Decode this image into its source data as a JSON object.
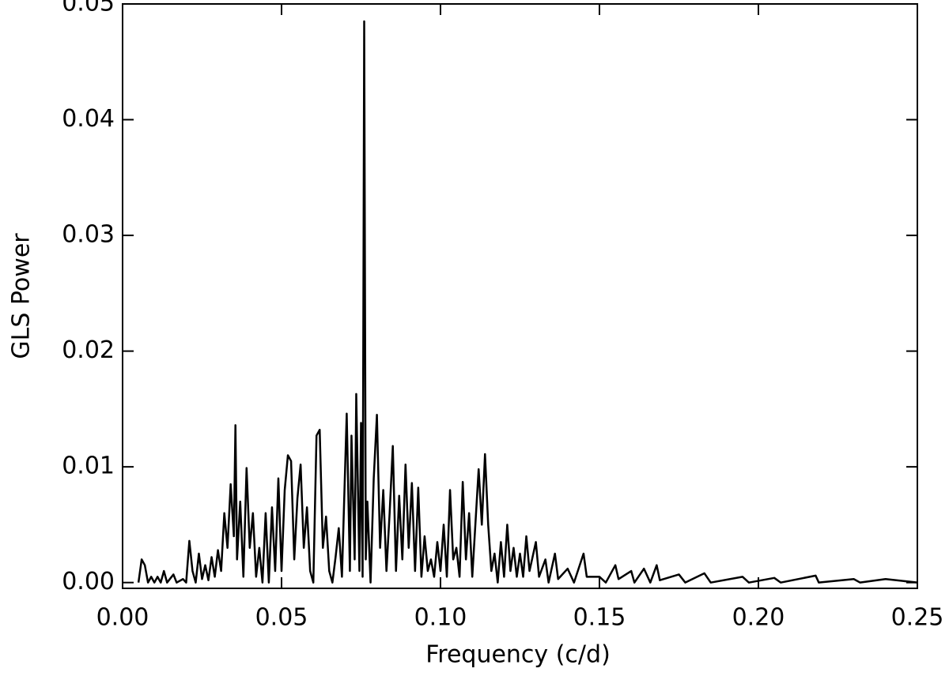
{
  "chart_data": {
    "type": "line",
    "xlabel": "Frequency (c/d)",
    "ylabel": "GLS Power",
    "color": "#000000",
    "grid": false,
    "x": [
      0.005,
      0.006,
      0.007,
      0.008,
      0.009,
      0.01,
      0.011,
      0.012,
      0.013,
      0.014,
      0.016,
      0.017,
      0.019,
      0.02,
      0.021,
      0.022,
      0.023,
      0.024,
      0.025,
      0.026,
      0.027,
      0.028,
      0.029,
      0.03,
      0.031,
      0.032,
      0.033,
      0.034,
      0.035,
      0.0355,
      0.036,
      0.037,
      0.038,
      0.039,
      0.04,
      0.041,
      0.042,
      0.043,
      0.044,
      0.045,
      0.046,
      0.047,
      0.048,
      0.049,
      0.05,
      0.051,
      0.052,
      0.053,
      0.054,
      0.055,
      0.056,
      0.057,
      0.058,
      0.059,
      0.06,
      0.061,
      0.062,
      0.063,
      0.064,
      0.065,
      0.066,
      0.067,
      0.068,
      0.069,
      0.0705,
      0.0715,
      0.072,
      0.073,
      0.0735,
      0.0745,
      0.075,
      0.0755,
      0.076,
      0.0765,
      0.077,
      0.078,
      0.079,
      0.08,
      0.081,
      0.082,
      0.083,
      0.084,
      0.085,
      0.086,
      0.087,
      0.088,
      0.089,
      0.09,
      0.091,
      0.092,
      0.093,
      0.094,
      0.095,
      0.096,
      0.097,
      0.098,
      0.099,
      0.1,
      0.101,
      0.102,
      0.103,
      0.104,
      0.105,
      0.106,
      0.107,
      0.108,
      0.109,
      0.11,
      0.112,
      0.113,
      0.114,
      0.115,
      0.116,
      0.117,
      0.118,
      0.119,
      0.12,
      0.121,
      0.122,
      0.123,
      0.124,
      0.125,
      0.126,
      0.127,
      0.128,
      0.13,
      0.131,
      0.133,
      0.134,
      0.136,
      0.137,
      0.14,
      0.142,
      0.145,
      0.146,
      0.15,
      0.152,
      0.155,
      0.156,
      0.16,
      0.161,
      0.164,
      0.166,
      0.168,
      0.169,
      0.175,
      0.177,
      0.183,
      0.185,
      0.195,
      0.197,
      0.205,
      0.207,
      0.218,
      0.219,
      0.23,
      0.232,
      0.24,
      0.25
    ],
    "values": [
      0,
      0.002,
      0.0015,
      0,
      0.0005,
      0,
      0.0005,
      0,
      0.001,
      0,
      0.0007,
      0,
      0.0003,
      0,
      0.0036,
      0.001,
      0,
      0.0025,
      0.0003,
      0.0015,
      0.0002,
      0.0022,
      0.0005,
      0.0028,
      0.001,
      0.006,
      0.003,
      0.0085,
      0.004,
      0.0136,
      0.002,
      0.007,
      0.0005,
      0.0099,
      0.003,
      0.006,
      0.0005,
      0.003,
      0,
      0.006,
      0,
      0.0065,
      0.001,
      0.009,
      0.001,
      0.008,
      0.011,
      0.0105,
      0.002,
      0.0073,
      0.0102,
      0.003,
      0.0065,
      0.001,
      0,
      0.0127,
      0.0132,
      0.003,
      0.0057,
      0.001,
      0,
      0.0022,
      0.0047,
      0.0005,
      0.0146,
      0.001,
      0.0127,
      0.002,
      0.0163,
      0.001,
      0.0138,
      0.0005,
      0.0485,
      0.002,
      0.007,
      0,
      0.009,
      0.0145,
      0.003,
      0.008,
      0.001,
      0.006,
      0.0118,
      0.001,
      0.0075,
      0.002,
      0.0102,
      0.003,
      0.0086,
      0.001,
      0.0082,
      0.0005,
      0.004,
      0.001,
      0.002,
      0.0005,
      0.0035,
      0.001,
      0.005,
      0.0005,
      0.008,
      0.002,
      0.003,
      0.0005,
      0.0087,
      0.002,
      0.006,
      0.0005,
      0.0098,
      0.005,
      0.0111,
      0.005,
      0.001,
      0.0025,
      0,
      0.0035,
      0.0005,
      0.005,
      0.001,
      0.003,
      0.0005,
      0.0025,
      0.0005,
      0.004,
      0.001,
      0.0035,
      0.0005,
      0.002,
      0,
      0.0025,
      0.0003,
      0.0012,
      0,
      0.0025,
      0.0005,
      0.0005,
      0,
      0.0015,
      0.0003,
      0.001,
      0,
      0.0012,
      0,
      0.0015,
      0.0002,
      0.0007,
      0,
      0.0008,
      0,
      0.0005,
      0,
      0.0004,
      0,
      0.0006,
      0,
      0.0003,
      0,
      0.0003,
      0
    ],
    "xlim": [
      0,
      0.25
    ],
    "ylim": [
      -0.0005,
      0.05
    ],
    "xticks": [
      {
        "value": 0,
        "label": "0.00"
      },
      0.05,
      {
        "value": 0.1,
        "label": "0.10"
      },
      0.15,
      {
        "value": 0.2,
        "label": "0.20"
      },
      0.25
    ],
    "yticks": [
      {
        "value": 0,
        "label": "0.00"
      },
      0.01,
      0.02,
      0.03,
      0.04,
      0.05
    ]
  }
}
